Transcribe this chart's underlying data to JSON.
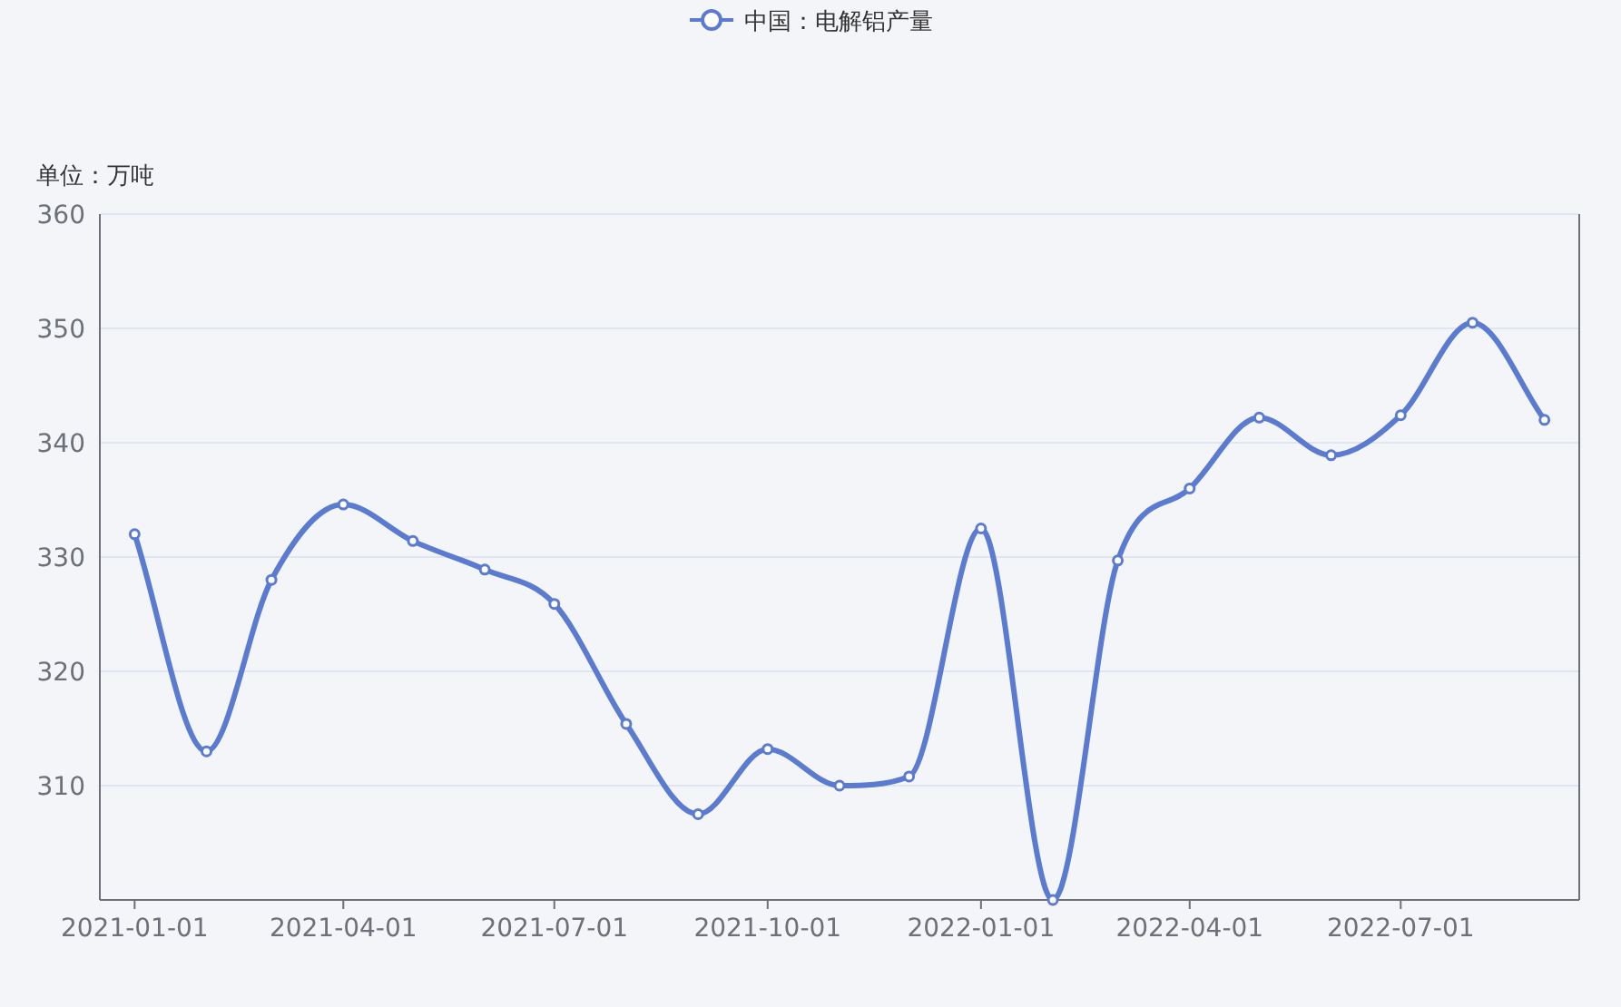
{
  "chart_data": {
    "type": "line",
    "ylabel": "单位：万吨",
    "x": [
      "2021-01-01",
      "2021-02-01",
      "2021-03-01",
      "2021-04-01",
      "2021-05-01",
      "2021-06-01",
      "2021-07-01",
      "2021-08-01",
      "2021-09-01",
      "2021-10-01",
      "2021-11-01",
      "2021-12-01",
      "2022-01-01",
      "2022-02-01",
      "2022-03-01",
      "2022-04-01",
      "2022-05-01",
      "2022-06-01",
      "2022-07-01",
      "2022-08-01",
      "2022-09-01"
    ],
    "series": [
      {
        "name": "中国：电解铝产量",
        "color": "#5b7bd0",
        "values": [
          332,
          313,
          328,
          334.6,
          331.4,
          328.9,
          325.9,
          315.4,
          307.5,
          313.2,
          310,
          310.8,
          332.5,
          300,
          329.7,
          336,
          342.2,
          338.9,
          342.4,
          350.5,
          342
        ]
      }
    ],
    "xlim": [
      "2020-12-17",
      "2022-09-16"
    ],
    "xticks": [
      {
        "value": "2021-01-01",
        "label": "2021-01-01"
      },
      {
        "value": "2021-04-01",
        "label": "2021-04-01"
      },
      {
        "value": "2021-07-01",
        "label": "2021-07-01"
      },
      {
        "value": "2021-10-01",
        "label": "2021-10-01"
      },
      {
        "value": "2022-01-01",
        "label": "2022-01-01"
      },
      {
        "value": "2022-04-01",
        "label": "2022-04-01"
      },
      {
        "value": "2022-07-01",
        "label": "2022-07-01"
      }
    ],
    "ylim": [
      300,
      360
    ],
    "yticks": [
      {
        "value": 300,
        "label": null
      },
      310,
      320,
      330,
      340,
      350,
      360
    ],
    "grid": "y",
    "legend": "top",
    "marker": "circle",
    "line_style": "solid"
  }
}
